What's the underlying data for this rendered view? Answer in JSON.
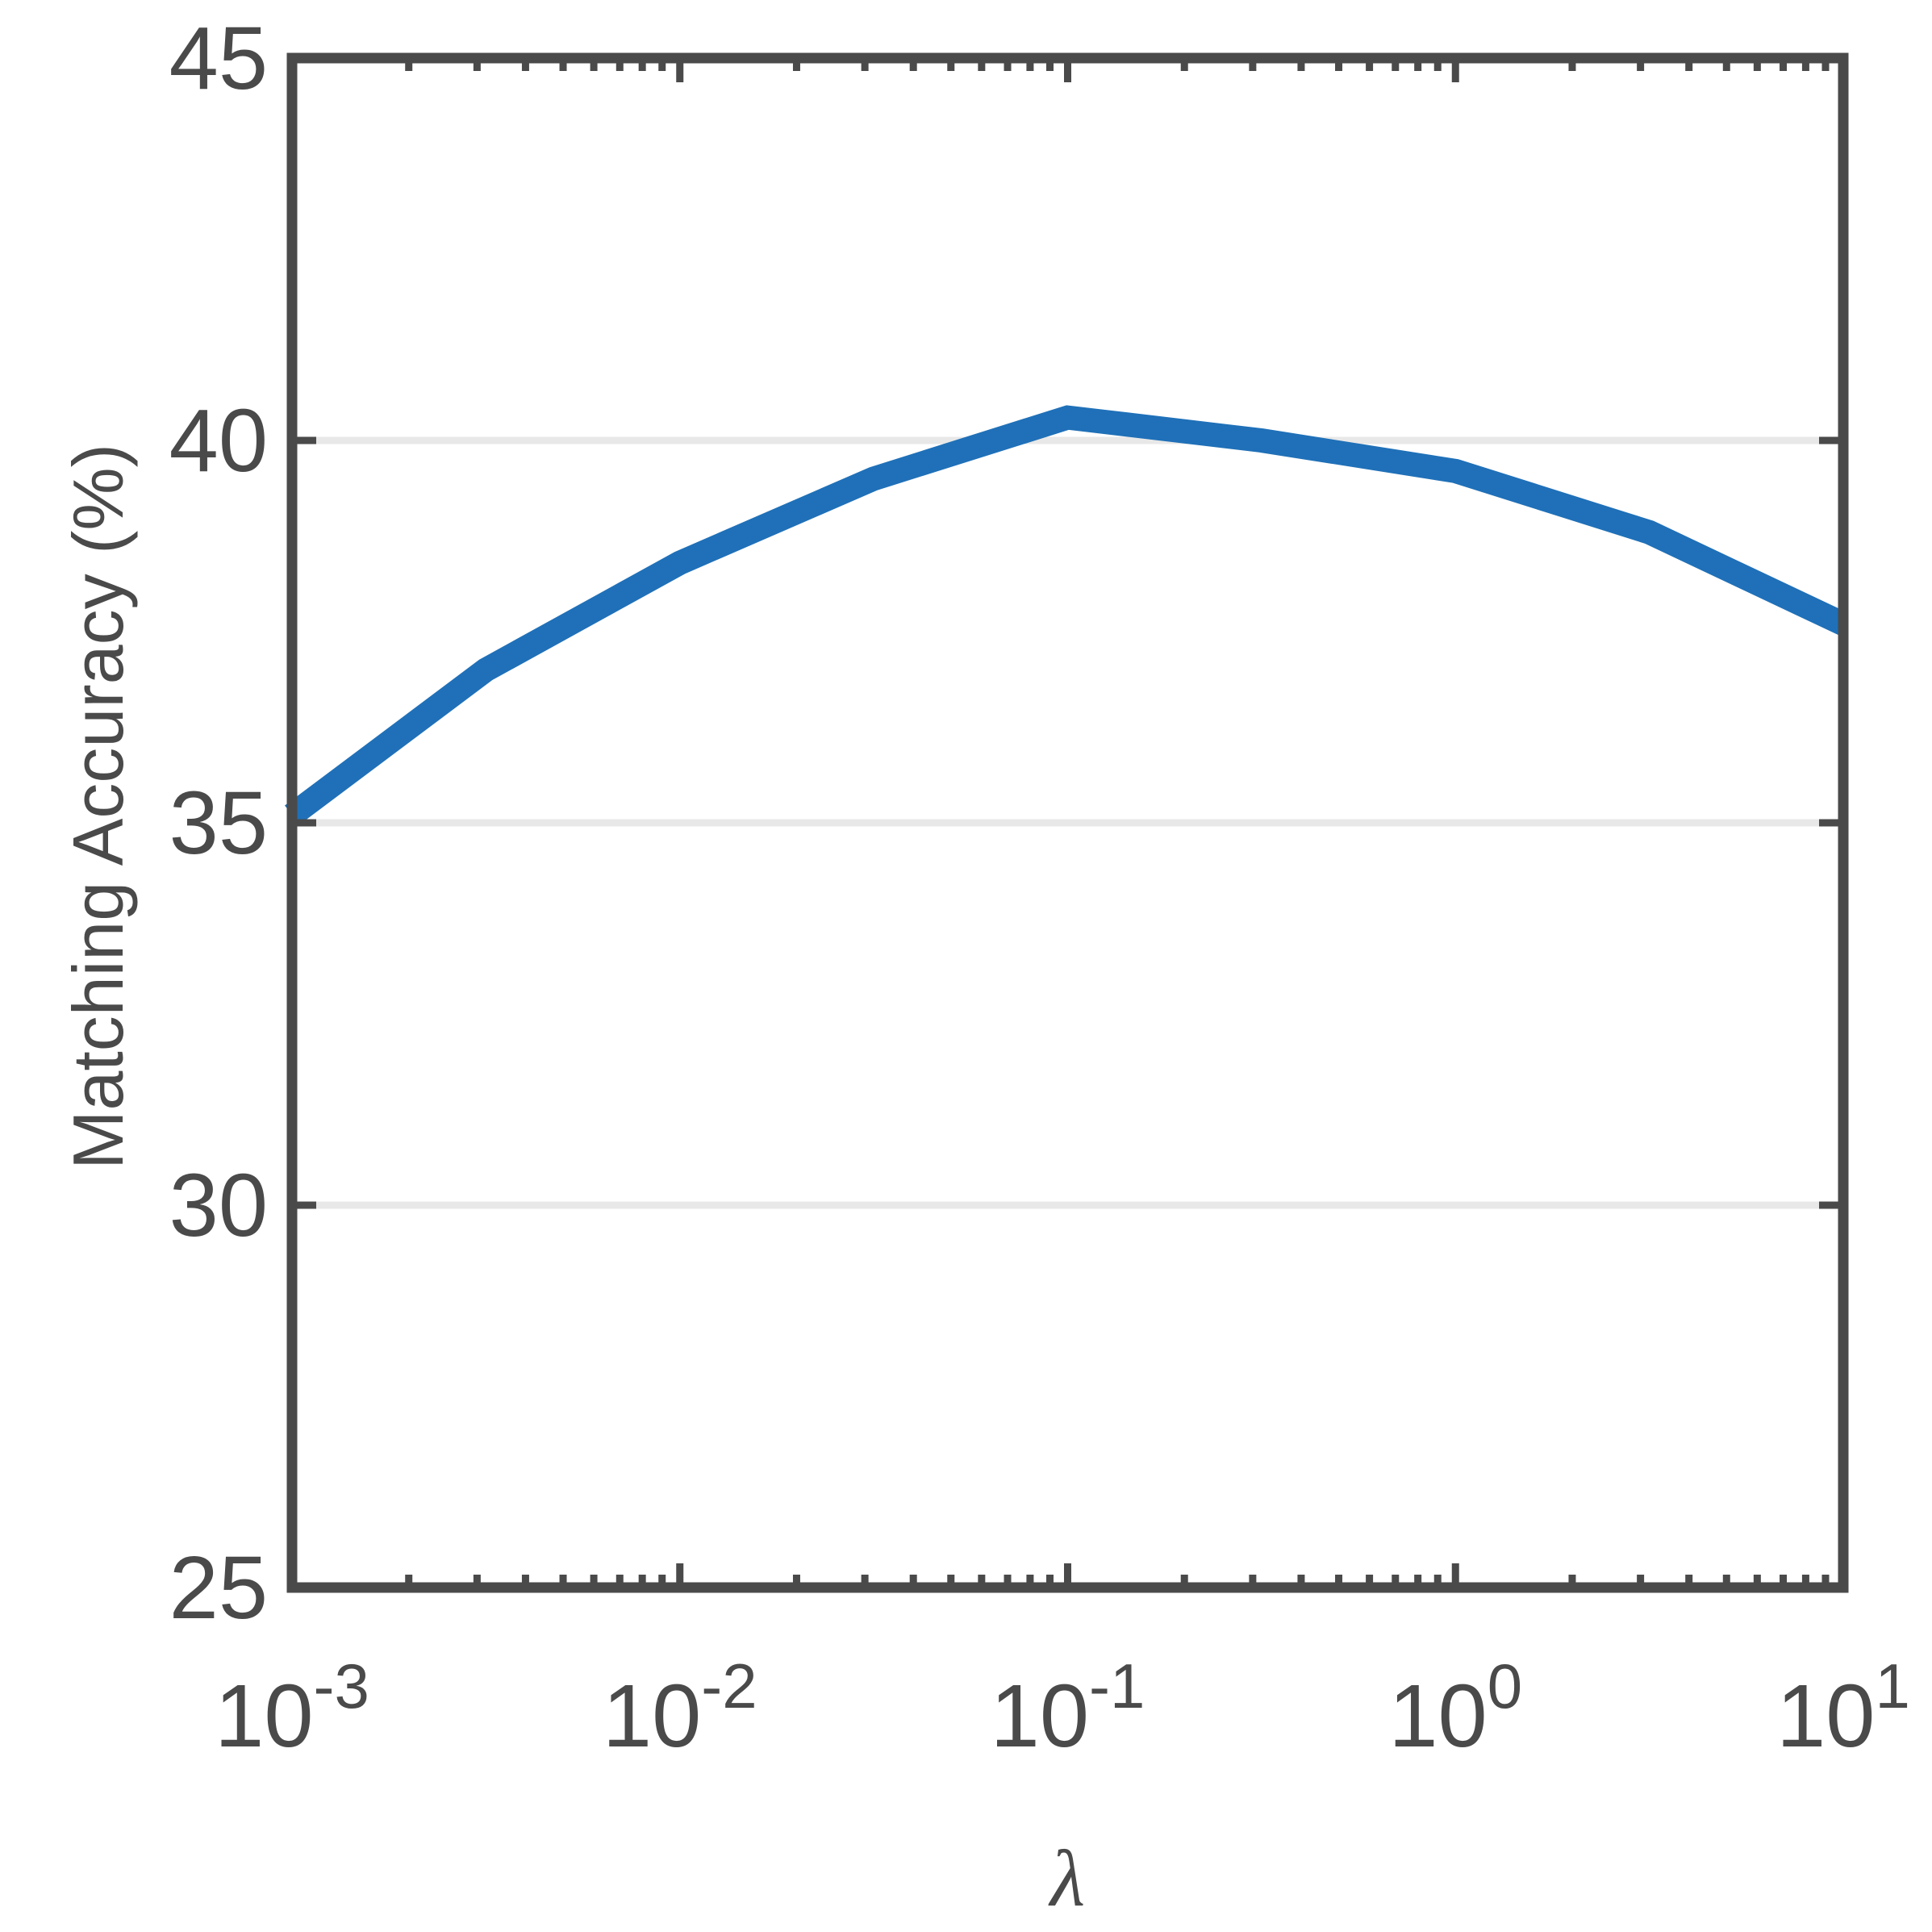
{
  "chart_data": {
    "type": "line",
    "title": "",
    "xlabel": "λ",
    "ylabel": "Matching Accuracy (%)",
    "xscale": "log",
    "xlim": [
      0.001,
      10
    ],
    "ylim": [
      25,
      45
    ],
    "grid": "y-major",
    "legend": "none",
    "x_ticks": [
      {
        "value": 0.001,
        "base": "10",
        "exp": "-3"
      },
      {
        "value": 0.01,
        "base": "10",
        "exp": "-2"
      },
      {
        "value": 0.1,
        "base": "10",
        "exp": "-1"
      },
      {
        "value": 1,
        "base": "10",
        "exp": "0"
      },
      {
        "value": 10,
        "base": "10",
        "exp": "1"
      }
    ],
    "y_ticks": [
      "25",
      "30",
      "35",
      "40",
      "45"
    ],
    "series": [
      {
        "color": "#1f70b8",
        "x": [
          0.001,
          0.00316,
          0.01,
          0.0316,
          0.1,
          0.316,
          1,
          3.16,
          10
        ],
        "y": [
          35.1,
          37.0,
          38.4,
          39.5,
          40.3,
          40.0,
          39.6,
          38.8,
          37.6
        ]
      }
    ],
    "colors": {
      "axis": "#4a4a4a",
      "grid": "#e8e8e8",
      "line": "#1f70b8"
    }
  }
}
